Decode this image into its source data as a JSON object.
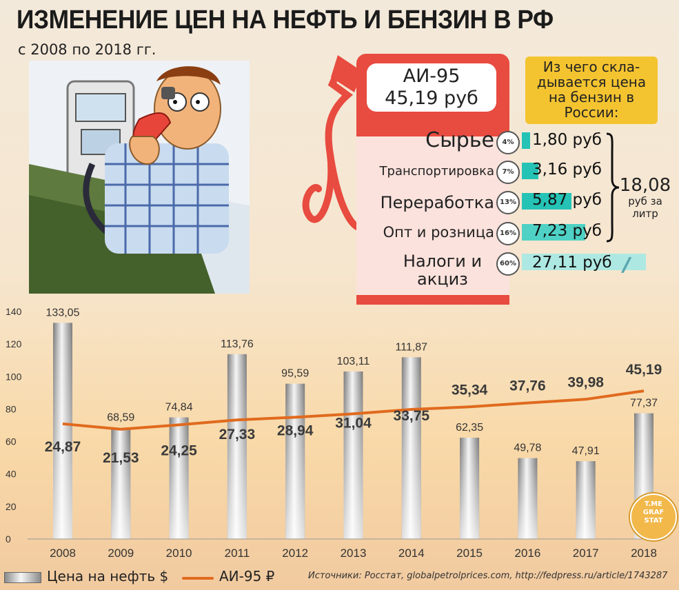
{
  "header": {
    "title": "ИЗМЕНЕНИЕ ЦЕН НА НЕФТЬ И БЕНЗИН В РФ",
    "subtitle": "с 2008 по 2018 гг."
  },
  "pump": {
    "fuel": "АИ-95",
    "price": "45,19 руб"
  },
  "info_box": "Из чего скла-дывается цена на бензин в России:",
  "breakdown": [
    {
      "label": "Сырье",
      "pct": "4%",
      "value": "1,80 руб",
      "share": 4
    },
    {
      "label": "Транспортировка",
      "pct": "7%",
      "value": "3,16 руб",
      "share": 7
    },
    {
      "label": "Переработка",
      "pct": "13%",
      "value": "5,87 руб",
      "share": 13
    },
    {
      "label": "Опт и розница",
      "pct": "16%",
      "value": "7,23 руб",
      "share": 16
    },
    {
      "label": "Налоги и акциз",
      "pct": "60%",
      "value": "27,11 руб",
      "share": 60
    }
  ],
  "total": {
    "value": "18,08",
    "unit": "руб за литр"
  },
  "legend": {
    "oil": "Цена на нефть $",
    "ai95": "АИ-95 ₽"
  },
  "sources": "Источники: Росстат, globalpetrolprices.com, http://fedpress.ru/article/1743287",
  "logo": {
    "line1": "T.ME",
    "line2": "GRAF",
    "line3": "STAT"
  },
  "colors": {
    "accent_red": "#e84b3f",
    "line_orange": "#e06a1e",
    "teal": "#25c3b5",
    "info_yellow": "#f4c430"
  },
  "chart_data": {
    "type": "bar",
    "categories": [
      "2008",
      "2009",
      "2010",
      "2011",
      "2012",
      "2013",
      "2014",
      "2015",
      "2016",
      "2017",
      "2018"
    ],
    "ylim": [
      0,
      140
    ],
    "yticks": [
      0,
      20,
      40,
      60,
      80,
      100,
      120,
      140
    ],
    "series": [
      {
        "name": "Цена на нефть $",
        "kind": "bar",
        "values": [
          133.05,
          68.59,
          74.84,
          113.76,
          95.59,
          103.11,
          111.87,
          62.35,
          49.78,
          47.91,
          77.37
        ],
        "labels": [
          "133,05",
          "68,59",
          "74,84",
          "113,76",
          "95,59",
          "103,11",
          "111,87",
          "62,35",
          "49,78",
          "47,91",
          "77,37"
        ]
      },
      {
        "name": "АИ-95 ₽",
        "kind": "line",
        "values": [
          24.87,
          21.53,
          24.25,
          27.33,
          28.94,
          31.04,
          33.75,
          35.34,
          37.76,
          39.98,
          45.19
        ],
        "labels": [
          "24,87",
          "21,53",
          "24,25",
          "27,33",
          "28,94",
          "31,04",
          "33,75",
          "35,34",
          "37,76",
          "39,98",
          "45,19"
        ]
      }
    ]
  }
}
